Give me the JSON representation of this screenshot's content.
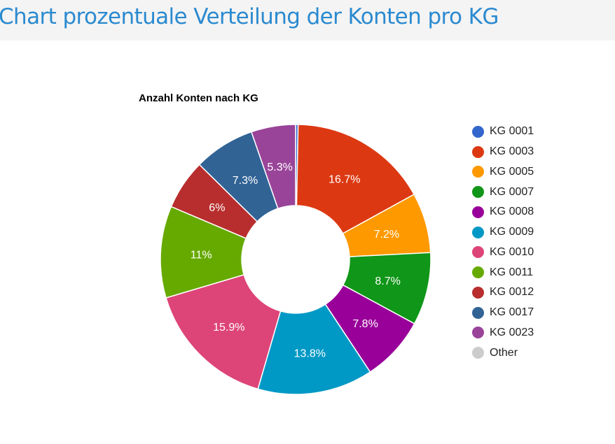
{
  "page": {
    "title": "Chart prozentuale Verteilung der Konten pro KG"
  },
  "chart_data": {
    "type": "pie",
    "title": "Anzahl Konten nach KG",
    "donut": true,
    "legend_position": "right",
    "slices": [
      {
        "label": "KG 0001",
        "value": 0.3,
        "display": "",
        "color": "#3366cc"
      },
      {
        "label": "KG 0003",
        "value": 16.7,
        "display": "16.7%",
        "color": "#dc3912"
      },
      {
        "label": "KG 0005",
        "value": 7.2,
        "display": "7.2%",
        "color": "#ff9900"
      },
      {
        "label": "KG 0007",
        "value": 8.7,
        "display": "8.7%",
        "color": "#109618"
      },
      {
        "label": "KG 0008",
        "value": 7.8,
        "display": "7.8%",
        "color": "#990099"
      },
      {
        "label": "KG 0009",
        "value": 13.8,
        "display": "13.8%",
        "color": "#0099c6"
      },
      {
        "label": "KG 0010",
        "value": 15.9,
        "display": "15.9%",
        "color": "#dd4477"
      },
      {
        "label": "KG 0011",
        "value": 11,
        "display": "11%",
        "color": "#66aa00"
      },
      {
        "label": "KG 0012",
        "value": 6,
        "display": "6%",
        "color": "#b82e2e"
      },
      {
        "label": "KG 0017",
        "value": 7.3,
        "display": "7.3%",
        "color": "#316395"
      },
      {
        "label": "KG 0023",
        "value": 5.3,
        "display": "5.3%",
        "color": "#994499"
      },
      {
        "label": "Other",
        "value": 0,
        "display": "",
        "color": "#cccccc"
      }
    ]
  }
}
